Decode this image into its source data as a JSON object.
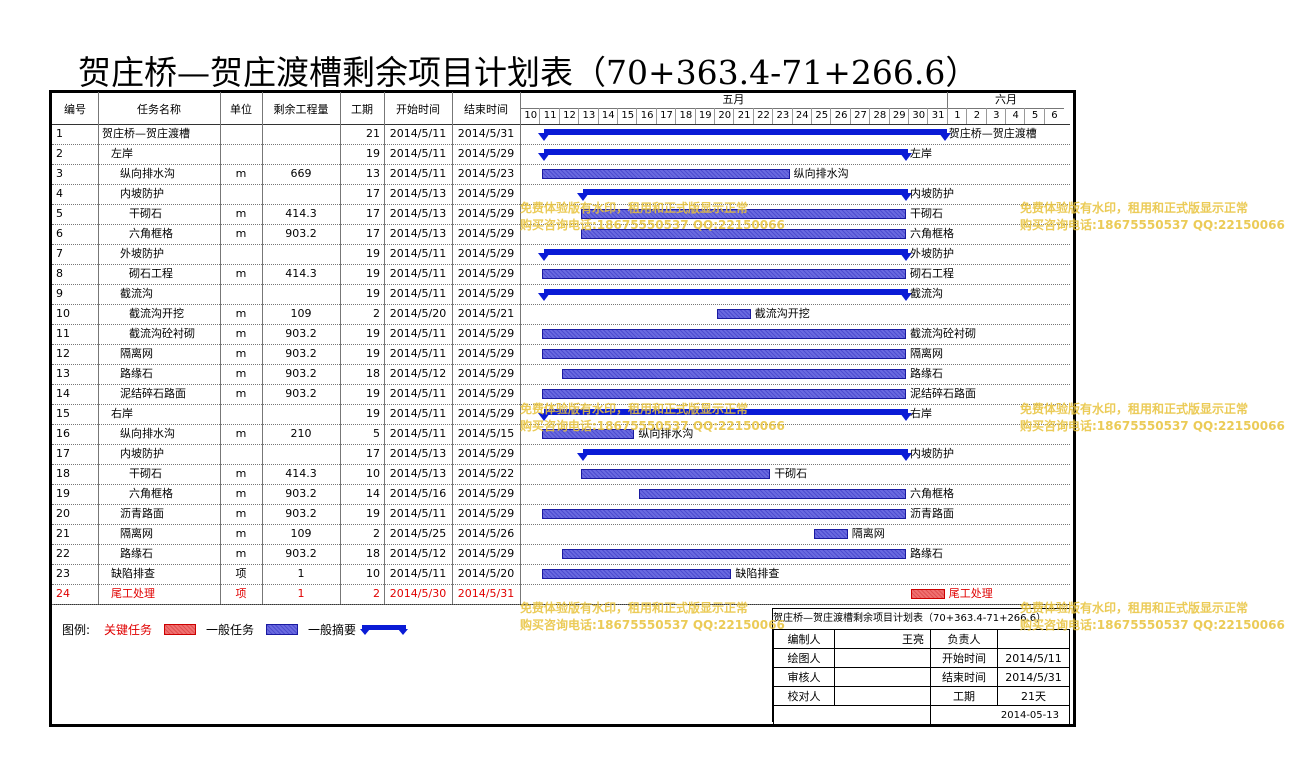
{
  "title": "贺庄桥—贺庄渡槽剩余项目计划表（70+363.4-71+266.6）",
  "headers": {
    "id": "编号",
    "name": "任务名称",
    "unit": "单位",
    "qty": "剩余工程量",
    "dur": "工期",
    "start": "开始时间",
    "end": "结束时间"
  },
  "months": [
    {
      "label": "五月"
    },
    {
      "label": "六月"
    }
  ],
  "days": [
    "10",
    "11",
    "12",
    "13",
    "14",
    "15",
    "16",
    "17",
    "18",
    "19",
    "20",
    "21",
    "22",
    "23",
    "24",
    "25",
    "26",
    "27",
    "28",
    "29",
    "30",
    "31",
    "1",
    "2",
    "3",
    "4",
    "5",
    "6"
  ],
  "tasks": [
    {
      "id": "1",
      "name": "贺庄桥—贺庄渡槽",
      "unit": "",
      "qty": "",
      "dur": "21",
      "start": "2014/5/11",
      "end": "2014/5/31",
      "type": "summary",
      "label": "贺庄桥—贺庄渡槽",
      "s": 1,
      "e": 22
    },
    {
      "id": "2",
      "name": "左岸",
      "unit": "",
      "qty": "",
      "dur": "19",
      "start": "2014/5/11",
      "end": "2014/5/29",
      "type": "summary",
      "label": "左岸",
      "s": 1,
      "e": 20
    },
    {
      "id": "3",
      "name": "纵向排水沟",
      "unit": "m",
      "qty": "669",
      "dur": "13",
      "start": "2014/5/11",
      "end": "2014/5/23",
      "type": "task",
      "label": "纵向排水沟",
      "s": 1,
      "e": 14
    },
    {
      "id": "4",
      "name": "内坡防护",
      "unit": "",
      "qty": "",
      "dur": "17",
      "start": "2014/5/13",
      "end": "2014/5/29",
      "type": "summary",
      "label": "内坡防护",
      "s": 3,
      "e": 20
    },
    {
      "id": "5",
      "name": "干砌石",
      "unit": "m",
      "qty": "414.3",
      "dur": "17",
      "start": "2014/5/13",
      "end": "2014/5/29",
      "type": "task",
      "label": "干砌石",
      "s": 3,
      "e": 20
    },
    {
      "id": "6",
      "name": "六角框格",
      "unit": "m",
      "qty": "903.2",
      "dur": "17",
      "start": "2014/5/13",
      "end": "2014/5/29",
      "type": "task",
      "label": "六角框格",
      "s": 3,
      "e": 20
    },
    {
      "id": "7",
      "name": "外坡防护",
      "unit": "",
      "qty": "",
      "dur": "19",
      "start": "2014/5/11",
      "end": "2014/5/29",
      "type": "summary",
      "label": "外坡防护",
      "s": 1,
      "e": 20
    },
    {
      "id": "8",
      "name": "砌石工程",
      "unit": "m",
      "qty": "414.3",
      "dur": "19",
      "start": "2014/5/11",
      "end": "2014/5/29",
      "type": "task",
      "label": "砌石工程",
      "s": 1,
      "e": 20
    },
    {
      "id": "9",
      "name": "截流沟",
      "unit": "",
      "qty": "",
      "dur": "19",
      "start": "2014/5/11",
      "end": "2014/5/29",
      "type": "summary",
      "label": "截流沟",
      "s": 1,
      "e": 20
    },
    {
      "id": "10",
      "name": "截流沟开挖",
      "unit": "m",
      "qty": "109",
      "dur": "2",
      "start": "2014/5/20",
      "end": "2014/5/21",
      "type": "task",
      "label": "截流沟开挖",
      "s": 10,
      "e": 12
    },
    {
      "id": "11",
      "name": "截流沟砼衬砌",
      "unit": "m",
      "qty": "903.2",
      "dur": "19",
      "start": "2014/5/11",
      "end": "2014/5/29",
      "type": "task",
      "label": "截流沟砼衬砌",
      "s": 1,
      "e": 20
    },
    {
      "id": "12",
      "name": "隔离网",
      "unit": "m",
      "qty": "903.2",
      "dur": "19",
      "start": "2014/5/11",
      "end": "2014/5/29",
      "type": "task",
      "label": "隔离网",
      "s": 1,
      "e": 20
    },
    {
      "id": "13",
      "name": "路缘石",
      "unit": "m",
      "qty": "903.2",
      "dur": "18",
      "start": "2014/5/12",
      "end": "2014/5/29",
      "type": "task",
      "label": "路缘石",
      "s": 2,
      "e": 20
    },
    {
      "id": "14",
      "name": "泥结碎石路面",
      "unit": "m",
      "qty": "903.2",
      "dur": "19",
      "start": "2014/5/11",
      "end": "2014/5/29",
      "type": "task",
      "label": "泥结碎石路面",
      "s": 1,
      "e": 20
    },
    {
      "id": "15",
      "name": "右岸",
      "unit": "",
      "qty": "",
      "dur": "19",
      "start": "2014/5/11",
      "end": "2014/5/29",
      "type": "summary",
      "label": "右岸",
      "s": 1,
      "e": 20
    },
    {
      "id": "16",
      "name": "纵向排水沟",
      "unit": "m",
      "qty": "210",
      "dur": "5",
      "start": "2014/5/11",
      "end": "2014/5/15",
      "type": "task",
      "label": "纵向排水沟",
      "s": 1,
      "e": 6
    },
    {
      "id": "17",
      "name": "内坡防护",
      "unit": "",
      "qty": "",
      "dur": "17",
      "start": "2014/5/13",
      "end": "2014/5/29",
      "type": "summary",
      "label": "内坡防护",
      "s": 3,
      "e": 20
    },
    {
      "id": "18",
      "name": "干砌石",
      "unit": "m",
      "qty": "414.3",
      "dur": "10",
      "start": "2014/5/13",
      "end": "2014/5/22",
      "type": "task",
      "label": "干砌石",
      "s": 3,
      "e": 13
    },
    {
      "id": "19",
      "name": "六角框格",
      "unit": "m",
      "qty": "903.2",
      "dur": "14",
      "start": "2014/5/16",
      "end": "2014/5/29",
      "type": "task",
      "label": "六角框格",
      "s": 6,
      "e": 20
    },
    {
      "id": "20",
      "name": "沥青路面",
      "unit": "m",
      "qty": "903.2",
      "dur": "19",
      "start": "2014/5/11",
      "end": "2014/5/29",
      "type": "task",
      "label": "沥青路面",
      "s": 1,
      "e": 20
    },
    {
      "id": "21",
      "name": "隔离网",
      "unit": "m",
      "qty": "109",
      "dur": "2",
      "start": "2014/5/25",
      "end": "2014/5/26",
      "type": "task",
      "label": "隔离网",
      "s": 15,
      "e": 17
    },
    {
      "id": "22",
      "name": "路缘石",
      "unit": "m",
      "qty": "903.2",
      "dur": "18",
      "start": "2014/5/12",
      "end": "2014/5/29",
      "type": "task",
      "label": "路缘石",
      "s": 2,
      "e": 20
    },
    {
      "id": "23",
      "name": "缺陷排查",
      "unit": "项",
      "qty": "1",
      "dur": "10",
      "start": "2014/5/11",
      "end": "2014/5/20",
      "type": "task",
      "label": "缺陷排查",
      "s": 1,
      "e": 11
    },
    {
      "id": "24",
      "name": "尾工处理",
      "unit": "项",
      "qty": "1",
      "dur": "2",
      "start": "2014/5/30",
      "end": "2014/5/31",
      "type": "critical",
      "label": "尾工处理",
      "s": 20,
      "e": 22
    }
  ],
  "legend": {
    "label": "图例:",
    "critical": "关键任务",
    "normal": "一般任务",
    "summary": "一般摘要"
  },
  "info": {
    "title": "贺庄桥—贺庄渡槽剩余项目计划表（70+363.4-71+266.6）",
    "editor_label": "编制人",
    "editor": "王亮",
    "owner_label": "负责人",
    "drawer_label": "绘图人",
    "start_label": "开始时间",
    "start": "2014/5/11",
    "reviewer_label": "审核人",
    "end_label": "结束时间",
    "end": "2014/5/31",
    "checker_label": "校对人",
    "dur_label": "工期",
    "dur": "21天",
    "date": "2014-05-13"
  },
  "watermark": {
    "line1": "免费体验版有水印，租用和正式版显示正常",
    "line2": "购买咨询电话:18675550537 QQ:22150066"
  },
  "colors": {
    "summary": "#0a1bd6",
    "task": "#5a5ad8",
    "critical": "#e05050",
    "watermark": "#e8c23a"
  }
}
